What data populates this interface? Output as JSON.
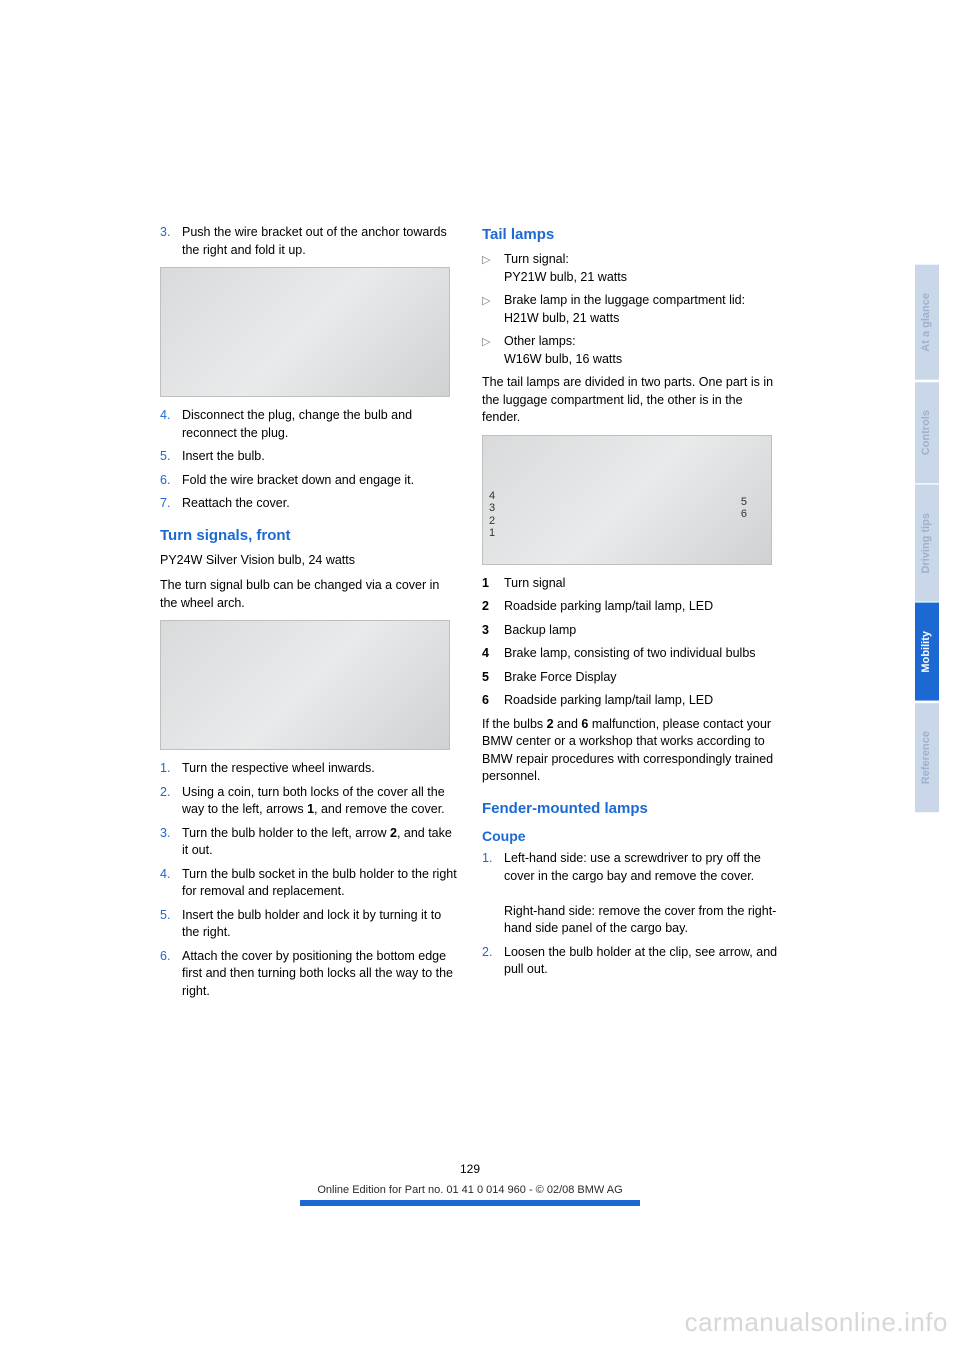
{
  "colors": {
    "accent": "#1c69d4",
    "tab_inactive_bg": "#c9d7e8",
    "tab_inactive_text": "#9db2cf",
    "tab_active_bg": "#1c69d4",
    "tab_active_text": "#ffffff",
    "body_text": "#000000",
    "watermark": "#d7d7d7"
  },
  "left_col": {
    "steps_a": [
      {
        "n": "3.",
        "t": "Push the wire bracket out of the anchor towards the right and fold it up."
      }
    ],
    "steps_b": [
      {
        "n": "4.",
        "t": "Disconnect the plug, change the bulb and reconnect the plug."
      },
      {
        "n": "5.",
        "t": "Insert the bulb."
      },
      {
        "n": "6.",
        "t": "Fold the wire bracket down and engage it."
      },
      {
        "n": "7.",
        "t": "Reattach the cover."
      }
    ],
    "heading_turn": "Turn signals, front",
    "turn_bulb": "PY24W Silver Vision bulb, 24 watts",
    "turn_para": "The turn signal bulb can be changed via a cover in the wheel arch.",
    "turn_steps": [
      {
        "n": "1.",
        "t": "Turn the respective wheel inwards."
      },
      {
        "n": "2.",
        "t": "Using a coin, turn both locks of the cover all the way to the left, arrows 1, and remove the cover."
      },
      {
        "n": "3.",
        "t": "Turn the bulb holder to the left, arrow 2, and take it out."
      },
      {
        "n": "4.",
        "t": "Turn the bulb socket in the bulb holder to the right for removal and replacement."
      },
      {
        "n": "5.",
        "t": "Insert the bulb holder and lock it by turning it to the right."
      },
      {
        "n": "6.",
        "t": "Attach the cover by positioning the bottom edge first and then turning both locks all the way to the right."
      }
    ]
  },
  "right_col": {
    "heading_tail": "Tail lamps",
    "tail_bullets": [
      "Turn signal:\nPY21W bulb, 21 watts",
      "Brake lamp in the luggage compartment lid: H21W bulb, 21 watts",
      "Other lamps:\nW16W bulb, 16 watts"
    ],
    "tail_para": "The tail lamps are divided in two parts. One part is in the luggage compartment lid, the other is in the fender.",
    "tail_legend": [
      {
        "n": "1",
        "t": "Turn signal"
      },
      {
        "n": "2",
        "t": "Roadside parking lamp/tail lamp, LED"
      },
      {
        "n": "3",
        "t": "Backup lamp"
      },
      {
        "n": "4",
        "t": "Brake lamp, consisting of two individual bulbs"
      },
      {
        "n": "5",
        "t": "Brake Force Display"
      },
      {
        "n": "6",
        "t": "Roadside parking lamp/tail lamp, LED"
      }
    ],
    "tail_note_pre": "If the bulbs ",
    "tail_note_b1": "2",
    "tail_note_mid": " and ",
    "tail_note_b2": "6",
    "tail_note_post": " malfunction, please contact your BMW center or a workshop that works according to BMW repair procedures with correspondingly trained personnel.",
    "heading_fender": "Fender-mounted lamps",
    "sub_coupe": "Coupe",
    "coupe_steps": [
      {
        "n": "1.",
        "t1": "Left-hand side: use a screwdriver to pry off the cover in the cargo bay and remove the cover.",
        "t2": "Right-hand side: remove the cover from the right-hand side panel of the cargo bay."
      },
      {
        "n": "2.",
        "t1": "Loosen the bulb holder at the clip, see arrow, and pull out."
      }
    ],
    "diagram_labels_left": [
      "4",
      "3",
      "2",
      "1"
    ],
    "diagram_labels_right": [
      "5",
      "6"
    ]
  },
  "side_tabs": [
    {
      "label": "At a glance",
      "active": false
    },
    {
      "label": "Controls",
      "active": false
    },
    {
      "label": "Driving tips",
      "active": false
    },
    {
      "label": "Mobility",
      "active": true
    },
    {
      "label": "Reference",
      "active": false
    }
  ],
  "page_number": "129",
  "footer_text": "Online Edition for Part no. 01 41 0 014 960 - © 02/08 BMW AG",
  "watermark": "carmanualsonline.info"
}
